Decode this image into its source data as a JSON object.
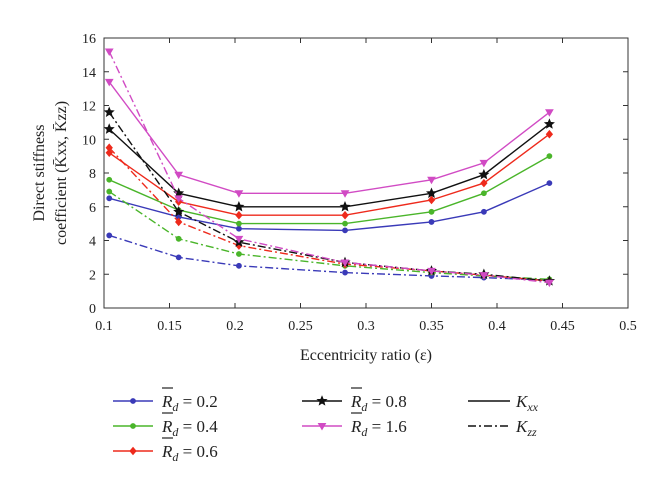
{
  "chart_data": {
    "type": "line",
    "xlabel": "Eccentricity ratio (ε)",
    "ylabel_line1": "Direct stiffness",
    "ylabel_line2": "coefficient (K̄xx, K̄zz)",
    "xlim": [
      0.1,
      0.5
    ],
    "ylim": [
      0,
      16
    ],
    "xticks": [
      0.1,
      0.15,
      0.2,
      0.25,
      0.3,
      0.35,
      0.4,
      0.45,
      0.5
    ],
    "xtick_labels": [
      "0.1",
      "0.15",
      "0.2",
      "0.25",
      "0.3",
      "0.35",
      "0.4",
      "0.45",
      "0.5"
    ],
    "yticks": [
      0,
      2,
      4,
      6,
      8,
      10,
      12,
      14,
      16
    ],
    "ytick_labels": [
      "0",
      "2",
      "4",
      "6",
      "8",
      "10",
      "12",
      "14",
      "16"
    ],
    "grid": false,
    "legend_position": "below",
    "x": [
      0.104,
      0.157,
      0.203,
      0.284,
      0.35,
      0.39,
      0.44
    ],
    "series": [
      {
        "name": "R̄d = 0.2",
        "group": "0.2",
        "coef": "Kxx",
        "color": "#3a3ab8",
        "marker": "dot",
        "style": "solid",
        "values": [
          6.5,
          5.4,
          4.7,
          4.6,
          5.1,
          5.7,
          7.4
        ]
      },
      {
        "name": "R̄d = 0.4",
        "group": "0.4",
        "coef": "Kxx",
        "color": "#4ab52a",
        "marker": "dot",
        "style": "solid",
        "values": [
          7.6,
          5.8,
          5.0,
          5.0,
          5.7,
          6.8,
          9.0
        ]
      },
      {
        "name": "R̄d = 0.6",
        "group": "0.6",
        "coef": "Kxx",
        "color": "#ee2a1c",
        "marker": "diamond",
        "style": "solid",
        "values": [
          9.2,
          6.3,
          5.5,
          5.5,
          6.4,
          7.4,
          10.3
        ]
      },
      {
        "name": "R̄d = 0.8",
        "group": "0.8",
        "coef": "Kxx",
        "color": "#111111",
        "marker": "star",
        "style": "solid",
        "values": [
          10.6,
          6.8,
          6.0,
          6.0,
          6.8,
          7.9,
          10.9
        ]
      },
      {
        "name": "R̄d = 1.6",
        "group": "1.6",
        "coef": "Kxx",
        "color": "#d14bc4",
        "marker": "triangle",
        "style": "solid",
        "values": [
          13.4,
          7.9,
          6.8,
          6.8,
          7.6,
          8.6,
          11.6
        ]
      },
      {
        "name": "R̄d = 0.2",
        "group": "0.2",
        "coef": "Kzz",
        "color": "#3a3ab8",
        "marker": "dot",
        "style": "dashdot",
        "values": [
          4.3,
          3.0,
          2.5,
          2.1,
          1.9,
          1.8,
          1.65
        ]
      },
      {
        "name": "R̄d = 0.4",
        "group": "0.4",
        "coef": "Kzz",
        "color": "#4ab52a",
        "marker": "dot",
        "style": "dashdot",
        "values": [
          6.9,
          4.1,
          3.2,
          2.5,
          2.1,
          1.9,
          1.7
        ]
      },
      {
        "name": "R̄d = 0.6",
        "group": "0.6",
        "coef": "Kzz",
        "color": "#ee2a1c",
        "marker": "diamond",
        "style": "dashdot",
        "values": [
          9.5,
          5.1,
          3.7,
          2.6,
          2.2,
          1.95,
          1.6
        ]
      },
      {
        "name": "R̄d = 0.8",
        "group": "0.8",
        "coef": "Kzz",
        "color": "#111111",
        "marker": "star",
        "style": "dashdot",
        "values": [
          11.6,
          5.7,
          3.9,
          2.7,
          2.2,
          2.0,
          1.6
        ]
      },
      {
        "name": "R̄d = 1.6",
        "group": "1.6",
        "coef": "Kzz",
        "color": "#d14bc4",
        "marker": "triangle",
        "style": "dashdot",
        "values": [
          15.2,
          6.5,
          4.1,
          2.7,
          2.2,
          1.95,
          1.5
        ]
      }
    ],
    "legend": [
      {
        "group": "0.2",
        "value": "0.2",
        "color": "#3a3ab8",
        "marker": "dot"
      },
      {
        "group": "0.4",
        "value": "0.4",
        "color": "#4ab52a",
        "marker": "dot"
      },
      {
        "group": "0.6",
        "value": "0.6",
        "color": "#ee2a1c",
        "marker": "diamond"
      },
      {
        "group": "0.8",
        "value": "0.8",
        "color": "#111111",
        "marker": "star"
      },
      {
        "group": "1.6",
        "value": "1.6",
        "color": "#d14bc4",
        "marker": "triangle"
      }
    ],
    "legend_style": [
      {
        "label": "K",
        "subscript": "xx",
        "style": "solid"
      },
      {
        "label": "K",
        "subscript": "zz",
        "style": "dashdot"
      }
    ]
  }
}
